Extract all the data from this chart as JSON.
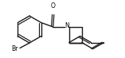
{
  "background_color": "#ffffff",
  "line_color": "#1a1a1a",
  "line_width": 1.0,
  "text_color": "#000000",
  "br_label": "Br",
  "o_label": "O",
  "n_label": "N",
  "figsize": [
    1.57,
    0.73
  ],
  "dpi": 100
}
